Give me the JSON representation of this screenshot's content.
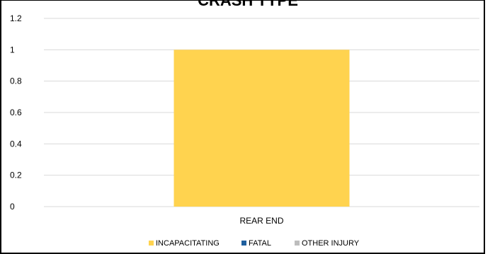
{
  "chart_data": {
    "type": "bar",
    "title": "CRASH TYPE",
    "xlabel": "",
    "ylabel": "",
    "categories": [
      "REAR END"
    ],
    "series": [
      {
        "name": "INCAPACITATING",
        "values": [
          1
        ],
        "color": "#FFD34F"
      },
      {
        "name": "FATAL",
        "values": [
          0
        ],
        "color": "#1F5F9E"
      },
      {
        "name": "OTHER INJURY",
        "values": [
          0
        ],
        "color": "#BDBDBD"
      }
    ],
    "stacked": true,
    "ylim": [
      0,
      1.2
    ],
    "yticks": [
      "0",
      "0.2",
      "0.4",
      "0.6",
      "0.8",
      "1",
      "1.2"
    ],
    "grid": true,
    "legend_position": "bottom"
  }
}
